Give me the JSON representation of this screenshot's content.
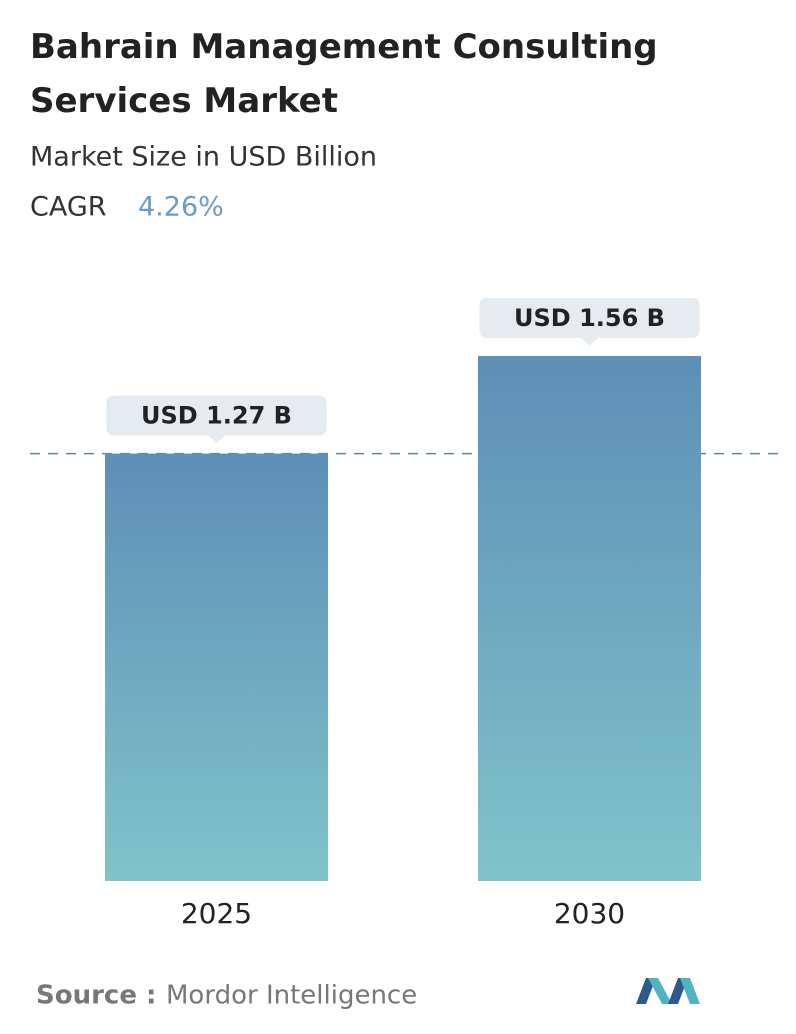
{
  "chart_data": {
    "type": "bar",
    "title": "Bahrain Management Consulting Services Market",
    "subtitle": "Market Size in USD Billion",
    "cagr_label": "CAGR",
    "cagr_value": "4.26%",
    "categories": [
      "2025",
      "2030"
    ],
    "values": [
      1.27,
      1.56
    ],
    "value_labels": [
      "USD 1.27 B",
      "USD 1.56 B"
    ],
    "color_top": "#5d8fb8",
    "color_bottom": "#80c3c9",
    "source_label": "Source :",
    "source": "Mordor Intelligence"
  }
}
